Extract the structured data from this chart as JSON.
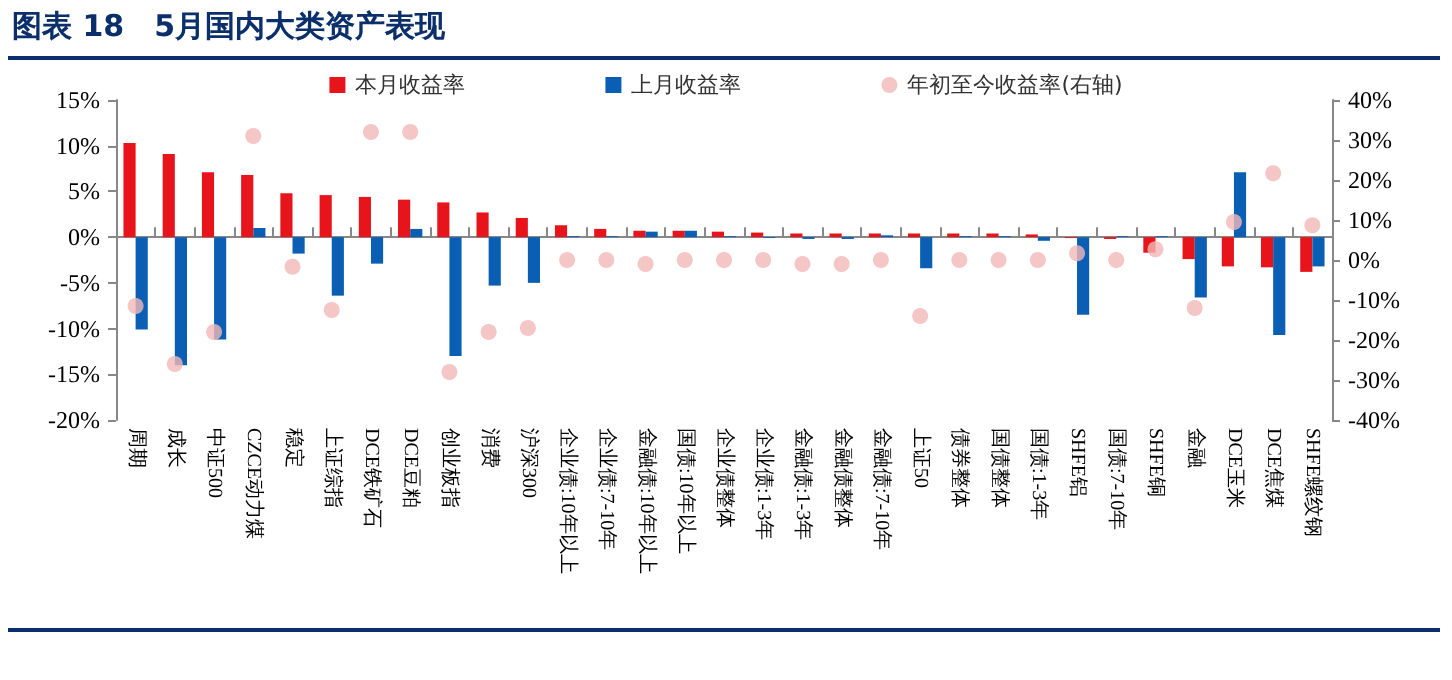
{
  "chart_data": {
    "type": "bar",
    "title": "图表 18　5月国内大类资产表现",
    "categories": [
      "周期",
      "成长",
      "中证500",
      "CZCE动力煤",
      "稳定",
      "上证综指",
      "DCE铁矿石",
      "DCE豆粕",
      "创业板指",
      "消费",
      "沪深300",
      "企业债:10年以上",
      "企业债:7-10年",
      "金融债:10年以上",
      "国债:10年以上",
      "企业债整体",
      "企业债:1-3年",
      "金融债:1-3年",
      "金融债整体",
      "金融债:7-10年",
      "上证50",
      "债券整体",
      "国债整体",
      "国债:1-3年",
      "SHFE铝",
      "国债:7-10年",
      "SHFE铜",
      "金融",
      "DCE玉米",
      "DCE焦煤",
      "SHFE螺纹钢"
    ],
    "series": [
      {
        "name": "本月收益率",
        "color": "#e8141c",
        "values": [
          10.3,
          9.1,
          7.1,
          6.8,
          4.8,
          4.6,
          4.4,
          4.1,
          3.8,
          2.7,
          2.1,
          1.3,
          0.9,
          0.7,
          0.7,
          0.6,
          0.5,
          0.4,
          0.4,
          0.4,
          0.4,
          0.4,
          0.4,
          0.3,
          -0.1,
          -0.2,
          -1.7,
          -2.4,
          -3.2,
          -3.3,
          -3.8
        ]
      },
      {
        "name": "上月收益率",
        "color": "#0a5fb4",
        "values": [
          -10.1,
          -14.0,
          -11.2,
          1.0,
          -1.8,
          -6.4,
          -2.9,
          0.9,
          -13.0,
          -5.3,
          -5.0,
          0.1,
          0.1,
          0.6,
          0.7,
          0.1,
          -0.1,
          -0.2,
          -0.2,
          0.2,
          -3.4,
          0.1,
          0.1,
          -0.4,
          -8.5,
          0.1,
          0.1,
          -6.6,
          7.1,
          -10.7,
          -3.2
        ]
      },
      {
        "name": "年初至今收益率(右轴)",
        "type": "scatter",
        "axis": "y2",
        "color": "#f2b8b8",
        "values": [
          -11.5,
          -26,
          -18,
          31,
          -1.7,
          -12.5,
          32,
          32,
          -28,
          -18,
          -17,
          0,
          0,
          -1,
          0,
          0,
          0,
          -1,
          -1,
          0,
          -14,
          0,
          0,
          0,
          1.7,
          0,
          2.7,
          -12,
          9.5,
          21.7,
          8.7
        ]
      }
    ],
    "ylim": [
      -20,
      15
    ],
    "yticks": [
      {
        "value": -20,
        "label": "-20%"
      },
      {
        "value": -15,
        "label": "-15%"
      },
      {
        "value": -10,
        "label": "-10%"
      },
      {
        "value": -5,
        "label": "-5%"
      },
      {
        "value": 0,
        "label": "0%"
      },
      {
        "value": 5,
        "label": "5%"
      },
      {
        "value": 10,
        "label": "10%"
      },
      {
        "value": 15,
        "label": "15%"
      }
    ],
    "y2lim": [
      -40,
      40
    ],
    "y2ticks": [
      {
        "value": -40,
        "label": "-40%"
      },
      {
        "value": -30,
        "label": "-30%"
      },
      {
        "value": -20,
        "label": "-20%"
      },
      {
        "value": -10,
        "label": "-10%"
      },
      {
        "value": 0,
        "label": "0%"
      },
      {
        "value": 10,
        "label": "10%"
      },
      {
        "value": 20,
        "label": "20%"
      },
      {
        "value": 30,
        "label": "30%"
      },
      {
        "value": 40,
        "label": "40%"
      }
    ],
    "marker": "circle",
    "legend": "top"
  }
}
